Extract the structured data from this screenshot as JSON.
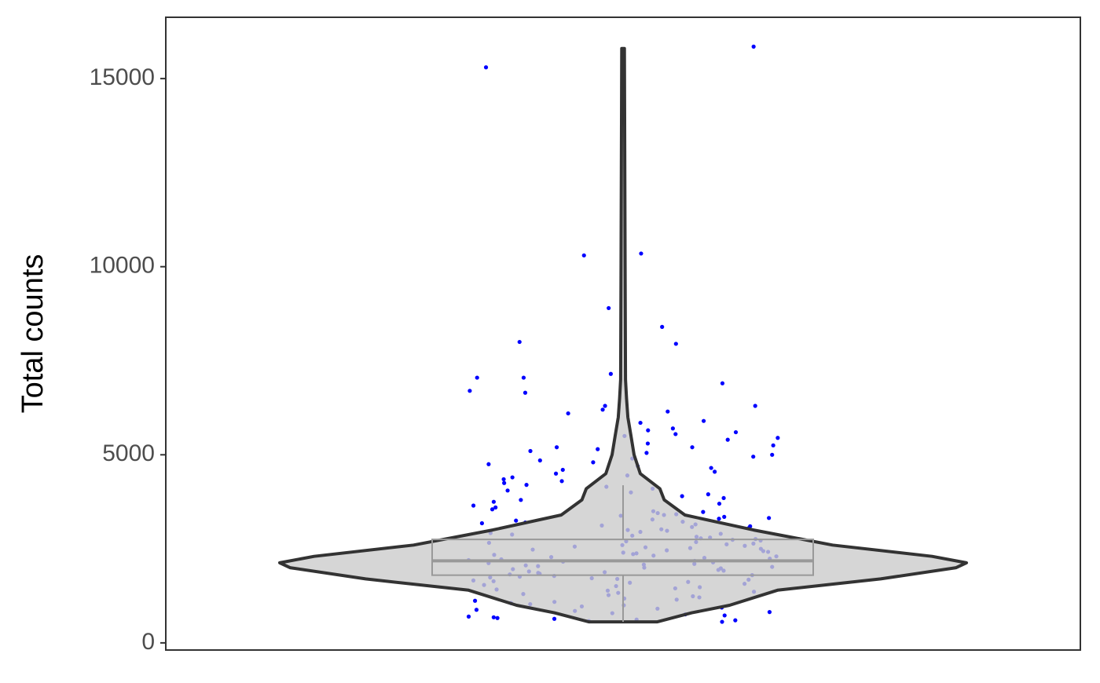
{
  "chart_data": {
    "type": "violin",
    "y_label": "Total counts",
    "ylim": [
      -190,
      16630
    ],
    "yticks": [
      0,
      5000,
      10000,
      15000
    ],
    "point_color": "#0000ff",
    "violin_fill": "#cccccc",
    "violin_stroke": "#333333",
    "box_color": "#999999",
    "violin": {
      "y": [
        560,
        800,
        1000,
        1400,
        1700,
        2000,
        2128,
        2300,
        2600,
        3000,
        3400,
        3800,
        4100,
        4500,
        5000,
        5500,
        6000,
        6500,
        7000,
        10000,
        15800
      ],
      "width": [
        0.1,
        0.2,
        0.31,
        0.45,
        0.75,
        0.97,
        1.0,
        0.9,
        0.61,
        0.38,
        0.18,
        0.12,
        0.107,
        0.05,
        0.032,
        0.023,
        0.014,
        0.01,
        0.007,
        0.006,
        0.004
      ]
    },
    "box": {
      "whisker_low": 560,
      "q1": 1800,
      "median": 2180,
      "q3": 2750,
      "whisker_high": 4190
    },
    "values": [
      15850,
      15300,
      10350,
      10300,
      8900,
      8400,
      8000,
      7950,
      7150,
      7050,
      7050,
      6900,
      6700,
      6650,
      6300,
      6300,
      6200,
      6150,
      6100,
      5900,
      5850,
      5700,
      5650,
      5600,
      5550,
      5500,
      5450,
      5400,
      5300,
      5250,
      5200,
      5200,
      5150,
      5100,
      5050,
      5000,
      4950,
      4900,
      4850,
      4800,
      4750,
      4700,
      4650,
      4600,
      4550,
      4500,
      4450,
      4400,
      4350,
      4300,
      4250,
      4200,
      4150,
      4100,
      4050,
      4000,
      3950,
      3900,
      3850,
      3800,
      3750,
      3700,
      3650,
      3600,
      3550,
      3500,
      3480,
      3450,
      3420,
      3400,
      3380,
      3350,
      3320,
      3300,
      3280,
      3250,
      3220,
      3200,
      3180,
      3150,
      3120,
      3100,
      3080,
      3050,
      3020,
      3000,
      2980,
      2950,
      2920,
      2900,
      2880,
      2850,
      2820,
      2800,
      2780,
      2760,
      2740,
      2720,
      2700,
      2680,
      2660,
      2640,
      2620,
      2600,
      2580,
      2560,
      2540,
      2520,
      2500,
      2480,
      2460,
      2440,
      2420,
      2400,
      2380,
      2360,
      2340,
      2320,
      2300,
      2280,
      2260,
      2240,
      2220,
      2200,
      2180,
      2160,
      2140,
      2120,
      2100,
      2080,
      2060,
      2040,
      2020,
      2000,
      1980,
      1960,
      1940,
      1920,
      1900,
      1880,
      1860,
      1840,
      1820,
      1800,
      1780,
      1760,
      1740,
      1720,
      1700,
      1680,
      1660,
      1640,
      1620,
      1600,
      1570,
      1540,
      1510,
      1480,
      1450,
      1420,
      1390,
      1360,
      1330,
      1300,
      1270,
      1240,
      1210,
      1180,
      1150,
      1120,
      1090,
      1060,
      1030,
      1000,
      970,
      940,
      910,
      880,
      850,
      820,
      790,
      760,
      730,
      700,
      680,
      660,
      640,
      620,
      600,
      580,
      560
    ]
  }
}
